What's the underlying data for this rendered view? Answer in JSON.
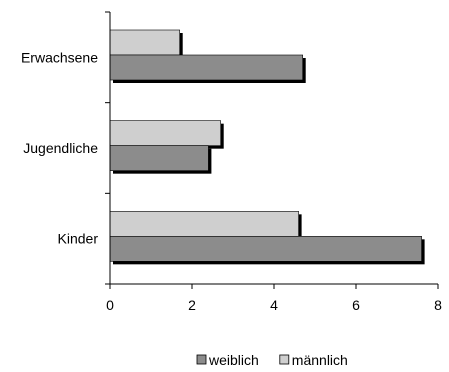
{
  "chart_data": {
    "type": "bar",
    "orientation": "horizontal",
    "categories": [
      "Kinder",
      "Jugendliche",
      "Erwachsene"
    ],
    "series": [
      {
        "name": "weiblich",
        "values": [
          7.6,
          2.4,
          4.7
        ],
        "color": "#8c8c8c"
      },
      {
        "name": "männlich",
        "values": [
          4.6,
          2.7,
          1.7
        ],
        "color": "#cfcfcf"
      }
    ],
    "xlim": [
      0,
      8
    ],
    "xticks": [
      "0",
      "2",
      "4",
      "6",
      "8"
    ],
    "legend_position": "bottom",
    "grid": false,
    "shadow": true
  }
}
